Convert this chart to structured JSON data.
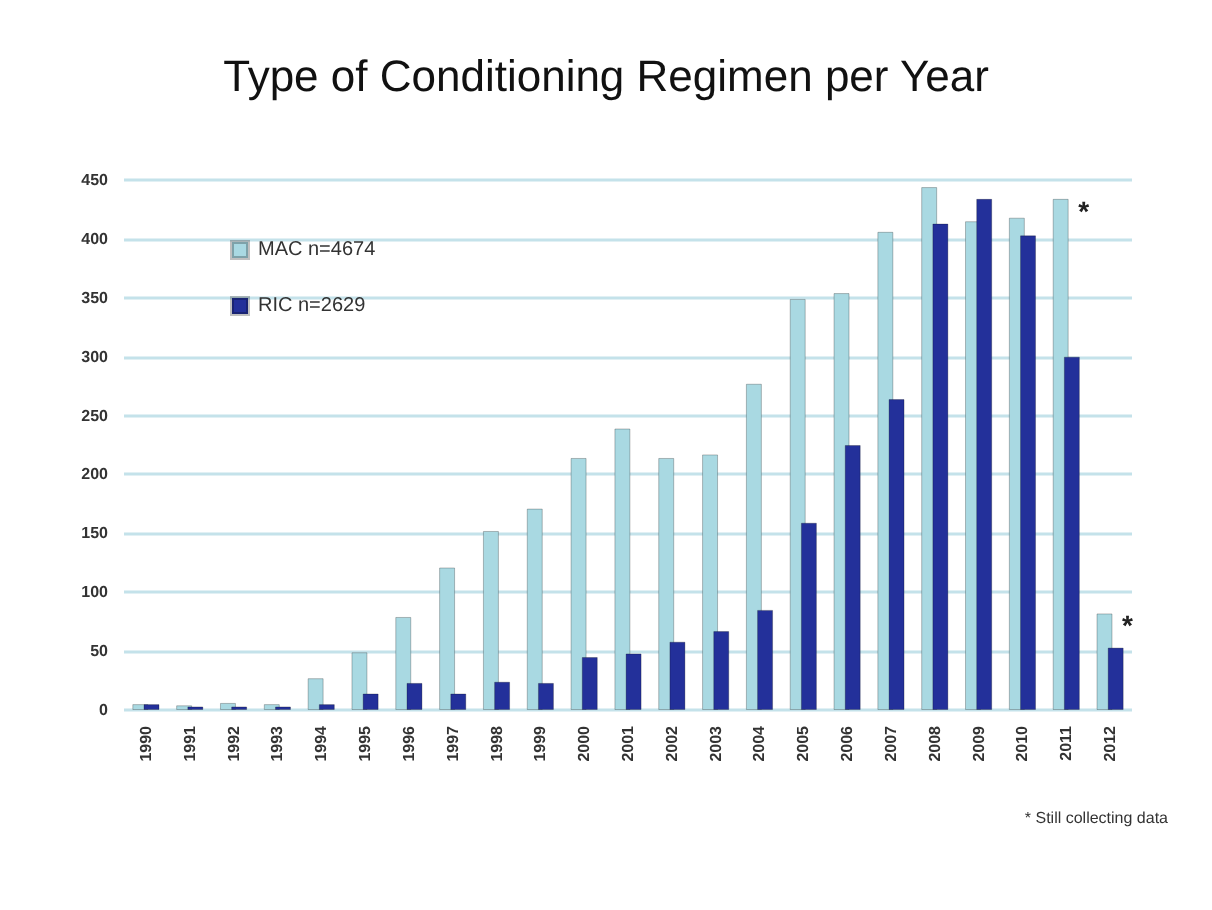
{
  "chart_data": {
    "type": "bar",
    "title": "Type of Conditioning Regimen per Year",
    "categories": [
      "1990",
      "1991",
      "1992",
      "1993",
      "1994",
      "1995",
      "1996",
      "1997",
      "1998",
      "1999",
      "2000",
      "2001",
      "2002",
      "2003",
      "2004",
      "2005",
      "2006",
      "2007",
      "2008",
      "2009",
      "2010",
      "2011",
      "2012"
    ],
    "series": [
      {
        "name": "MAC n=4674",
        "color": "#a9d9e2",
        "values": [
          5,
          4,
          6,
          5,
          27,
          49,
          79,
          121,
          152,
          171,
          214,
          239,
          214,
          217,
          277,
          349,
          354,
          406,
          444,
          415,
          418,
          434,
          82
        ]
      },
      {
        "name": "RIC n=2629",
        "color": "#23309a",
        "values": [
          5,
          3,
          3,
          3,
          5,
          14,
          23,
          14,
          24,
          23,
          45,
          48,
          58,
          67,
          85,
          159,
          225,
          264,
          413,
          434,
          403,
          300,
          53
        ]
      }
    ],
    "ylim": [
      0,
      450
    ],
    "yticks": [
      0,
      50,
      100,
      150,
      200,
      250,
      300,
      350,
      400,
      450
    ],
    "grid": "y",
    "legend": "top left",
    "annotations": [
      {
        "text": "*",
        "x": "2011",
        "y": 434
      },
      {
        "text": "*",
        "x": "2012",
        "y": 82
      },
      "* Still collecting data"
    ]
  }
}
